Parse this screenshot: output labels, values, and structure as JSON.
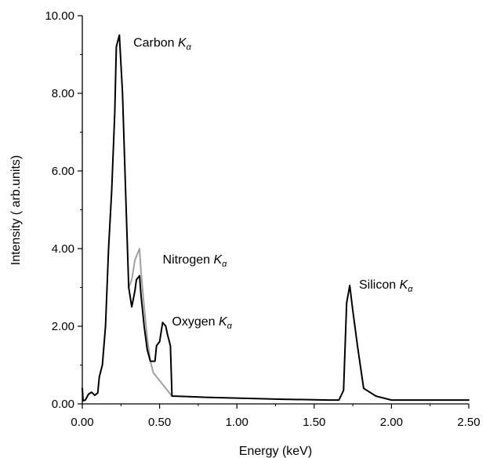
{
  "chart_data": {
    "type": "line",
    "xlabel": "Energy (keV)",
    "ylabel": "Intensity ( arb.units)",
    "xlim": [
      0,
      2.5
    ],
    "ylim": [
      0,
      10
    ],
    "grid": false,
    "x_ticks": [
      "0.00",
      "0.50",
      "1.00",
      "1.50",
      "2.00",
      "2.50"
    ],
    "y_ticks": [
      "0.00",
      "2.00",
      "4.00",
      "6.00",
      "8.00",
      "10.00"
    ],
    "series": [
      {
        "color": "#000000",
        "points": [
          [
            0.0,
            0.4
          ],
          [
            0.005,
            0.08
          ],
          [
            0.02,
            0.1
          ],
          [
            0.04,
            0.25
          ],
          [
            0.06,
            0.3
          ],
          [
            0.08,
            0.22
          ],
          [
            0.1,
            0.28
          ],
          [
            0.11,
            0.7
          ],
          [
            0.13,
            1.0
          ],
          [
            0.15,
            2.0
          ],
          [
            0.17,
            4.0
          ],
          [
            0.19,
            5.5
          ],
          [
            0.21,
            7.5
          ],
          [
            0.22,
            9.2
          ],
          [
            0.24,
            9.5
          ],
          [
            0.26,
            8.0
          ],
          [
            0.28,
            5.5
          ],
          [
            0.3,
            3.0
          ],
          [
            0.32,
            2.5
          ],
          [
            0.34,
            2.9
          ],
          [
            0.35,
            3.2
          ],
          [
            0.37,
            3.3
          ],
          [
            0.38,
            2.8
          ],
          [
            0.4,
            2.0
          ],
          [
            0.42,
            1.4
          ],
          [
            0.44,
            1.1
          ],
          [
            0.47,
            1.1
          ],
          [
            0.48,
            1.5
          ],
          [
            0.5,
            1.6
          ],
          [
            0.52,
            2.1
          ],
          [
            0.54,
            2.0
          ],
          [
            0.55,
            1.8
          ],
          [
            0.57,
            1.5
          ],
          [
            0.58,
            0.2
          ],
          [
            0.6,
            0.2
          ],
          [
            0.8,
            0.17
          ],
          [
            1.0,
            0.15
          ],
          [
            1.3,
            0.12
          ],
          [
            1.6,
            0.1
          ],
          [
            1.66,
            0.1
          ],
          [
            1.69,
            0.35
          ],
          [
            1.71,
            2.6
          ],
          [
            1.73,
            3.05
          ],
          [
            1.75,
            2.4
          ],
          [
            1.78,
            1.5
          ],
          [
            1.82,
            0.4
          ],
          [
            1.9,
            0.2
          ],
          [
            2.0,
            0.1
          ],
          [
            2.5,
            0.1
          ]
        ]
      },
      {
        "color": "#a0a0a0",
        "points": [
          [
            0.3,
            3.0
          ],
          [
            0.32,
            3.2
          ],
          [
            0.34,
            3.7
          ],
          [
            0.35,
            3.8
          ],
          [
            0.37,
            4.0
          ],
          [
            0.38,
            3.4
          ],
          [
            0.4,
            2.5
          ],
          [
            0.42,
            1.7
          ],
          [
            0.44,
            1.1
          ],
          [
            0.46,
            0.8
          ],
          [
            0.48,
            0.7
          ],
          [
            0.5,
            0.6
          ],
          [
            0.52,
            0.5
          ],
          [
            0.55,
            0.35
          ],
          [
            0.58,
            0.2
          ]
        ]
      }
    ],
    "annotations": [
      {
        "label": "Carbon ",
        "k": "K",
        "sub": "α",
        "x": 0.33,
        "y": 9.2
      },
      {
        "label": "Nitrogen ",
        "k": "K",
        "sub": "α",
        "x": 0.52,
        "y": 3.62
      },
      {
        "label": "Oxygen ",
        "k": "K",
        "sub": "α",
        "x": 0.58,
        "y": 2.02
      },
      {
        "label": "Silicon ",
        "k": "K",
        "sub": "α",
        "x": 1.79,
        "y": 2.97
      }
    ]
  }
}
